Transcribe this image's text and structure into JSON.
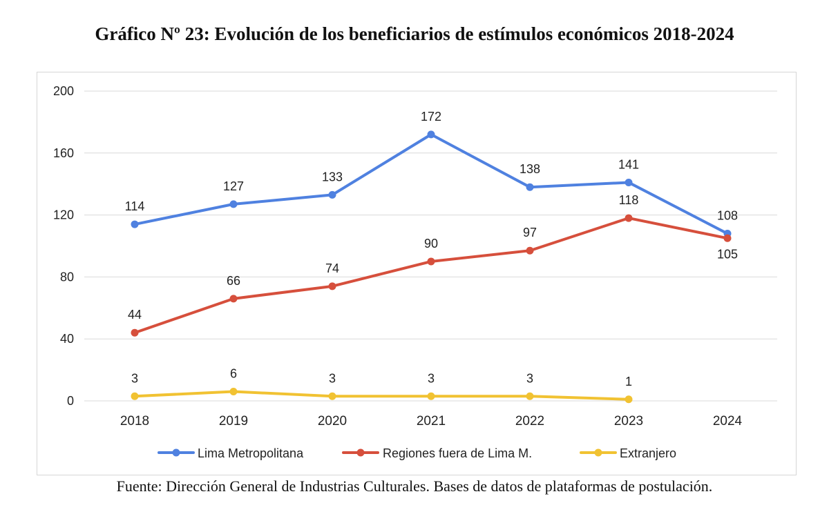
{
  "title": "Gráfico Nº 23: Evolución de los beneficiarios de estímulos económicos 2018-2024",
  "source": "Fuente: Dirección General de Industrias Culturales. Bases de datos de plataformas de postulación.",
  "chart_data": {
    "type": "line",
    "title": "",
    "xlabel": "",
    "ylabel": "",
    "categories": [
      "2018",
      "2019",
      "2020",
      "2021",
      "2022",
      "2023",
      "2024"
    ],
    "ylim": [
      0,
      200
    ],
    "yticks": [
      0,
      40,
      80,
      120,
      160,
      200
    ],
    "grid": true,
    "legend": "bottom",
    "series": [
      {
        "name": "Lima Metropolitana",
        "color": "#4f81e0",
        "values": [
          114,
          127,
          133,
          172,
          138,
          141,
          108
        ],
        "label_position": [
          "above",
          "above",
          "above",
          "above",
          "above",
          "above",
          "above"
        ]
      },
      {
        "name": "Regiones fuera de Lima M.",
        "color": "#d64f3c",
        "values": [
          44,
          66,
          74,
          90,
          97,
          118,
          105
        ],
        "label_position": [
          "above",
          "above",
          "above",
          "above",
          "above",
          "above",
          "below"
        ]
      },
      {
        "name": "Extranjero",
        "color": "#f1c232",
        "values": [
          3,
          6,
          3,
          3,
          3,
          1,
          null
        ],
        "label_position": [
          "above",
          "above",
          "above",
          "above",
          "above",
          "above",
          "above"
        ]
      }
    ]
  }
}
